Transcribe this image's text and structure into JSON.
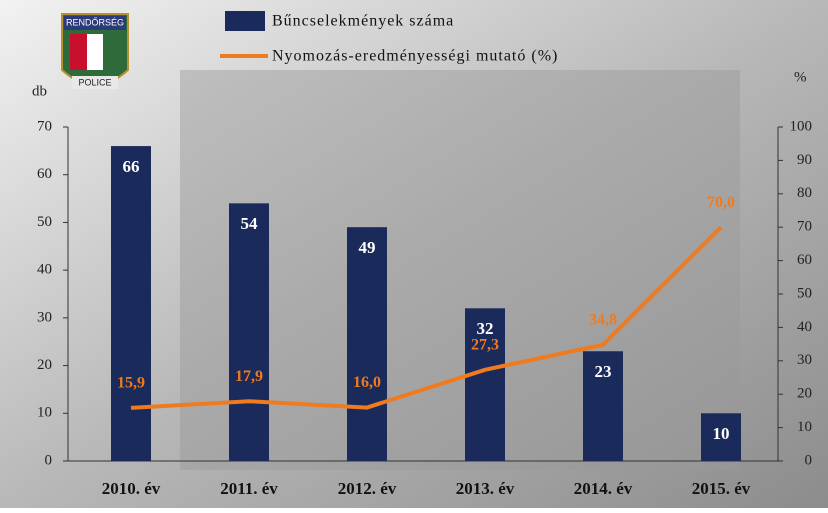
{
  "chart_data": {
    "type": "bar",
    "logo": {
      "top": "RENDŐRSÉG",
      "bottom": "POLICE"
    },
    "y_label": "db",
    "y2_label": "%",
    "categories": [
      "2010. év",
      "2011. év",
      "2012. év",
      "2013. év",
      "2014. év",
      "2015. év"
    ],
    "series": [
      {
        "name": "Bűncselekmények száma",
        "type": "bar",
        "color": "#1a2a5a",
        "values": [
          66,
          54,
          49,
          32,
          23,
          10
        ]
      },
      {
        "name": "Nyomozás-eredményességi mutató (%)",
        "type": "line",
        "axis": "y2",
        "color": "#f07a1e",
        "values": [
          15.9,
          17.9,
          16.0,
          27.3,
          34.8,
          70.0
        ],
        "value_labels": [
          "15,9",
          "17,9",
          "16,0",
          "27,3",
          "34,8",
          "70,0"
        ]
      }
    ],
    "ylim": [
      0,
      70
    ],
    "yticks": [
      0,
      10,
      20,
      30,
      40,
      50,
      60,
      70
    ],
    "y2lim": [
      0,
      100
    ],
    "y2ticks": [
      0,
      10,
      20,
      30,
      40,
      50,
      60,
      70,
      80,
      90,
      100
    ]
  }
}
